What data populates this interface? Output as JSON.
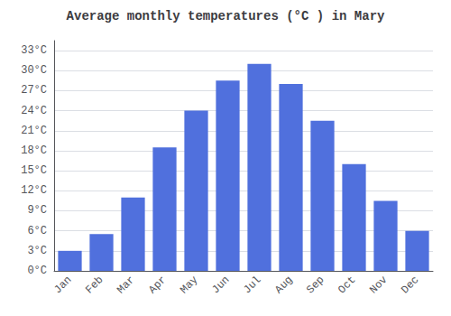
{
  "chart_data": {
    "type": "bar",
    "title": "Average monthly temperatures (°C ) in Mary",
    "categories": [
      "Jan",
      "Feb",
      "Mar",
      "Apr",
      "May",
      "Jun",
      "Jul",
      "Aug",
      "Sep",
      "Oct",
      "Nov",
      "Dec"
    ],
    "values": [
      3.0,
      5.5,
      11.0,
      18.5,
      24.0,
      28.5,
      31.0,
      28.0,
      22.5,
      16.0,
      10.5,
      6.0
    ],
    "ylim": [
      0,
      34.5
    ],
    "yticks": [
      {
        "value": 0,
        "label": "0°C"
      },
      {
        "value": 3,
        "label": "3°C"
      },
      {
        "value": 6,
        "label": "6°C"
      },
      {
        "value": 9,
        "label": "9°C"
      },
      {
        "value": 12,
        "label": "12°C"
      },
      {
        "value": 15,
        "label": "15°C"
      },
      {
        "value": 18,
        "label": "18°C"
      },
      {
        "value": 21,
        "label": "21°C"
      },
      {
        "value": 24,
        "label": "24°C"
      },
      {
        "value": 27,
        "label": "27°C"
      },
      {
        "value": 30,
        "label": "30°C"
      },
      {
        "value": 33,
        "label": "33°C"
      }
    ],
    "grid": true
  }
}
